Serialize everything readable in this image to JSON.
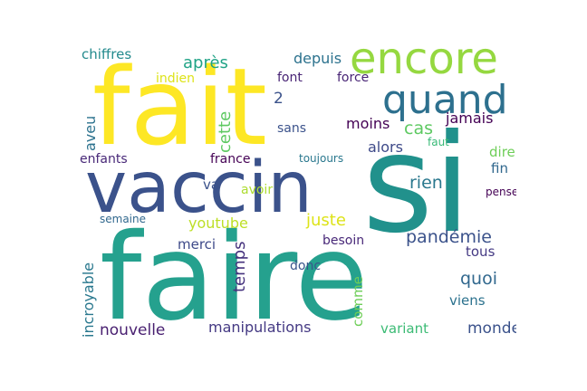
{
  "cloud": {
    "words": [
      {
        "text": "fait",
        "color": "#fde725"
      },
      {
        "text": "si",
        "color": "#21918c"
      },
      {
        "text": "vaccin",
        "color": "#3b528b"
      },
      {
        "text": "faire",
        "color": "#25a18e"
      },
      {
        "text": "encore",
        "color": "#95d840"
      },
      {
        "text": "quand",
        "color": "#2d708e"
      },
      {
        "text": "pandémie",
        "color": "#3b528b"
      },
      {
        "text": "juste",
        "color": "#dde318"
      },
      {
        "text": "après",
        "color": "#20a386"
      },
      {
        "text": "depuis",
        "color": "#2c728e"
      },
      {
        "text": "chiffres",
        "color": "#238a8d"
      },
      {
        "text": "indien",
        "color": "#dde318"
      },
      {
        "text": "font",
        "color": "#482475"
      },
      {
        "text": "force",
        "color": "#482475"
      },
      {
        "text": "2",
        "color": "#3b528b"
      },
      {
        "text": "aveu",
        "color": "#2c728e"
      },
      {
        "text": "cette",
        "color": "#5ec962"
      },
      {
        "text": "sans",
        "color": "#3b528b"
      },
      {
        "text": "moins",
        "color": "#440154"
      },
      {
        "text": "cas",
        "color": "#5ec962"
      },
      {
        "text": "jamais",
        "color": "#440154"
      },
      {
        "text": "alors",
        "color": "#3e4a89"
      },
      {
        "text": "dire",
        "color": "#6ece58"
      },
      {
        "text": "faut",
        "color": "#38b977"
      },
      {
        "text": "enfants",
        "color": "#482878"
      },
      {
        "text": "france",
        "color": "#440154"
      },
      {
        "text": "toujours",
        "color": "#2a788e"
      },
      {
        "text": "fin",
        "color": "#31688e"
      },
      {
        "text": "rien",
        "color": "#2a788e"
      },
      {
        "text": "va",
        "color": "#3b528b"
      },
      {
        "text": "avoir",
        "color": "#addc30"
      },
      {
        "text": "pense",
        "color": "#440154"
      },
      {
        "text": "semaine",
        "color": "#31688e"
      },
      {
        "text": "youtube",
        "color": "#bddf26"
      },
      {
        "text": "merci",
        "color": "#3e4a89"
      },
      {
        "text": "temps",
        "color": "#46337e"
      },
      {
        "text": "besoin",
        "color": "#482878"
      },
      {
        "text": "tous",
        "color": "#443983"
      },
      {
        "text": "incroyable",
        "color": "#2a788e"
      },
      {
        "text": "donc",
        "color": "#39568c"
      },
      {
        "text": "quoi",
        "color": "#31688e"
      },
      {
        "text": "comme",
        "color": "#6ece58"
      },
      {
        "text": "viens",
        "color": "#2c728e"
      },
      {
        "text": "nouvelle",
        "color": "#481f70"
      },
      {
        "text": "manipulations",
        "color": "#443983"
      },
      {
        "text": "variant",
        "color": "#3cbb75"
      },
      {
        "text": "monde",
        "color": "#3b528b"
      }
    ]
  }
}
